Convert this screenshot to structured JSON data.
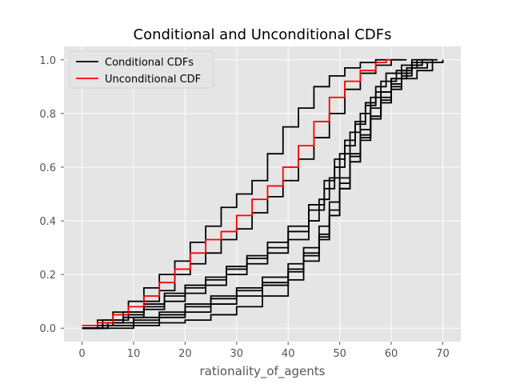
{
  "chart_data": {
    "type": "line",
    "title": "Conditional and Unconditional CDFs",
    "xlabel": "rationality_of_agents",
    "ylabel": "",
    "xlim": [
      -3.5,
      73.5
    ],
    "ylim": [
      -0.05,
      1.05
    ],
    "xticks": [
      0,
      10,
      20,
      30,
      40,
      50,
      60,
      70
    ],
    "yticks": [
      0.0,
      0.2,
      0.4,
      0.6,
      0.8,
      1.0
    ],
    "xtick_labels": [
      "0",
      "10",
      "20",
      "30",
      "40",
      "50",
      "60",
      "70"
    ],
    "ytick_labels": [
      "0.0",
      "0.2",
      "0.4",
      "0.6",
      "0.8",
      "1.0"
    ],
    "grid": true,
    "background": "#E5E5E5",
    "legend_position": "top-left",
    "legend": [
      {
        "label": "Conditional CDFs",
        "color": "#000000"
      },
      {
        "label": "Unconditional CDF",
        "color": "#FF0000"
      }
    ],
    "step": "post",
    "series": [
      {
        "group": "conditional",
        "color": "#000000",
        "x": [
          0,
          3,
          6,
          9,
          12,
          15,
          18,
          21,
          24,
          27,
          30,
          33,
          36,
          39,
          42,
          45,
          48,
          51,
          54,
          57,
          60,
          62
        ],
        "y": [
          0,
          0.03,
          0.06,
          0.1,
          0.15,
          0.2,
          0.25,
          0.32,
          0.38,
          0.45,
          0.5,
          0.55,
          0.65,
          0.75,
          0.82,
          0.9,
          0.94,
          0.97,
          0.99,
          1.0,
          1.0,
          1.0
        ]
      },
      {
        "group": "conditional",
        "color": "#000000",
        "x": [
          0,
          3,
          6,
          9,
          12,
          15,
          18,
          21,
          24,
          27,
          30,
          33,
          36,
          39,
          42,
          45,
          48,
          51,
          54,
          57,
          60,
          63
        ],
        "y": [
          0,
          0.01,
          0.03,
          0.06,
          0.1,
          0.14,
          0.2,
          0.24,
          0.28,
          0.33,
          0.37,
          0.43,
          0.49,
          0.55,
          0.63,
          0.71,
          0.8,
          0.89,
          0.95,
          0.98,
          1.0,
          1.0
        ]
      },
      {
        "group": "conditional",
        "color": "#000000",
        "x": [
          0,
          4,
          8,
          12,
          16,
          20,
          24,
          28,
          32,
          36,
          40,
          44,
          47,
          49,
          51,
          53,
          55,
          57,
          59,
          62,
          64,
          66
        ],
        "y": [
          0,
          0.02,
          0.05,
          0.08,
          0.12,
          0.15,
          0.18,
          0.22,
          0.26,
          0.3,
          0.36,
          0.44,
          0.52,
          0.6,
          0.68,
          0.76,
          0.84,
          0.9,
          0.95,
          0.98,
          1.0,
          1.0
        ]
      },
      {
        "group": "conditional",
        "color": "#000000",
        "x": [
          0,
          4,
          8,
          12,
          16,
          20,
          24,
          28,
          32,
          36,
          40,
          44,
          47,
          49,
          51,
          53,
          55,
          57,
          60,
          63,
          65,
          67
        ],
        "y": [
          0,
          0.03,
          0.06,
          0.09,
          0.13,
          0.16,
          0.19,
          0.23,
          0.27,
          0.32,
          0.38,
          0.46,
          0.55,
          0.63,
          0.7,
          0.77,
          0.83,
          0.88,
          0.93,
          0.97,
          1.0,
          1.0
        ]
      },
      {
        "group": "conditional",
        "color": "#000000",
        "x": [
          0,
          4,
          8,
          12,
          16,
          20,
          24,
          28,
          32,
          36,
          40,
          44,
          46,
          48,
          50,
          52,
          54,
          56,
          58,
          61,
          64,
          68
        ],
        "y": [
          0,
          0.02,
          0.04,
          0.07,
          0.1,
          0.13,
          0.16,
          0.2,
          0.24,
          0.28,
          0.33,
          0.4,
          0.48,
          0.56,
          0.65,
          0.73,
          0.8,
          0.86,
          0.92,
          0.96,
          0.99,
          1.0
        ]
      },
      {
        "group": "conditional",
        "color": "#000000",
        "x": [
          0,
          5,
          10,
          15,
          20,
          25,
          30,
          35,
          40,
          43,
          46,
          48,
          50,
          52,
          54,
          56,
          58,
          60,
          62,
          64,
          66,
          69
        ],
        "y": [
          0,
          0.02,
          0.04,
          0.06,
          0.09,
          0.12,
          0.15,
          0.19,
          0.24,
          0.3,
          0.38,
          0.47,
          0.56,
          0.65,
          0.74,
          0.82,
          0.88,
          0.93,
          0.96,
          0.98,
          1.0,
          1.0
        ]
      },
      {
        "group": "conditional",
        "color": "#000000",
        "x": [
          0,
          5,
          10,
          15,
          20,
          25,
          30,
          35,
          40,
          43,
          46,
          48,
          50,
          52,
          54,
          56,
          58,
          60,
          62,
          64,
          67,
          70
        ],
        "y": [
          0,
          0.01,
          0.03,
          0.05,
          0.08,
          0.11,
          0.14,
          0.17,
          0.22,
          0.28,
          0.35,
          0.44,
          0.54,
          0.64,
          0.72,
          0.79,
          0.85,
          0.9,
          0.94,
          0.97,
          0.99,
          1.0
        ]
      },
      {
        "group": "conditional",
        "color": "#000000",
        "x": [
          0,
          5,
          10,
          15,
          20,
          25,
          30,
          35,
          40,
          43,
          46,
          48,
          50,
          52,
          54,
          56,
          58,
          60,
          62,
          65,
          68,
          70
        ],
        "y": [
          0,
          0.01,
          0.02,
          0.04,
          0.06,
          0.09,
          0.12,
          0.16,
          0.21,
          0.27,
          0.34,
          0.42,
          0.52,
          0.62,
          0.7,
          0.78,
          0.84,
          0.89,
          0.93,
          0.96,
          0.99,
          1.0
        ]
      },
      {
        "group": "conditional",
        "color": "#000000",
        "x": [
          0,
          5,
          10,
          15,
          20,
          25,
          30,
          35,
          40,
          43,
          46,
          48,
          50,
          52,
          54,
          56,
          58,
          60,
          62,
          64,
          66,
          68
        ],
        "y": [
          0,
          0.0,
          0.01,
          0.02,
          0.03,
          0.05,
          0.08,
          0.12,
          0.18,
          0.25,
          0.33,
          0.42,
          0.52,
          0.62,
          0.71,
          0.79,
          0.86,
          0.91,
          0.95,
          0.98,
          1.0,
          1.0
        ]
      },
      {
        "group": "unconditional",
        "color": "#FF0000",
        "x": [
          0,
          3,
          6,
          9,
          12,
          15,
          18,
          21,
          24,
          27,
          30,
          33,
          36,
          39,
          42,
          45,
          48,
          51,
          54,
          57,
          59,
          60
        ],
        "y": [
          0.01,
          0.02,
          0.05,
          0.08,
          0.12,
          0.17,
          0.22,
          0.28,
          0.33,
          0.36,
          0.42,
          0.48,
          0.53,
          0.6,
          0.68,
          0.77,
          0.86,
          0.92,
          0.96,
          0.99,
          1.0,
          1.0
        ]
      }
    ]
  }
}
